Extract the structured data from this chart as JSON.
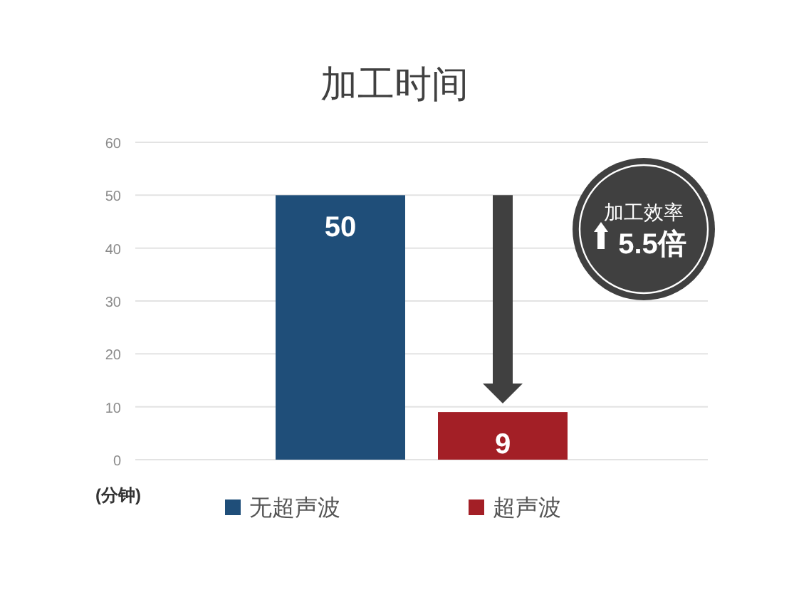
{
  "chart_data": {
    "type": "bar",
    "title": "加工时间",
    "ylabel": "(分钟)",
    "categories": [
      null
    ],
    "series": [
      {
        "name": "无超声波",
        "color": "#1f4e79",
        "values": [
          50
        ]
      },
      {
        "name": "超声波",
        "color": "#a31f26",
        "values": [
          9
        ]
      }
    ],
    "ylim": [
      0,
      60
    ],
    "yticks": [
      0,
      10,
      20,
      30,
      40,
      50,
      60
    ],
    "grid": "y",
    "legend": "bottom",
    "data_labels": true,
    "annotations": [
      "加工效率",
      "5.5倍"
    ]
  }
}
